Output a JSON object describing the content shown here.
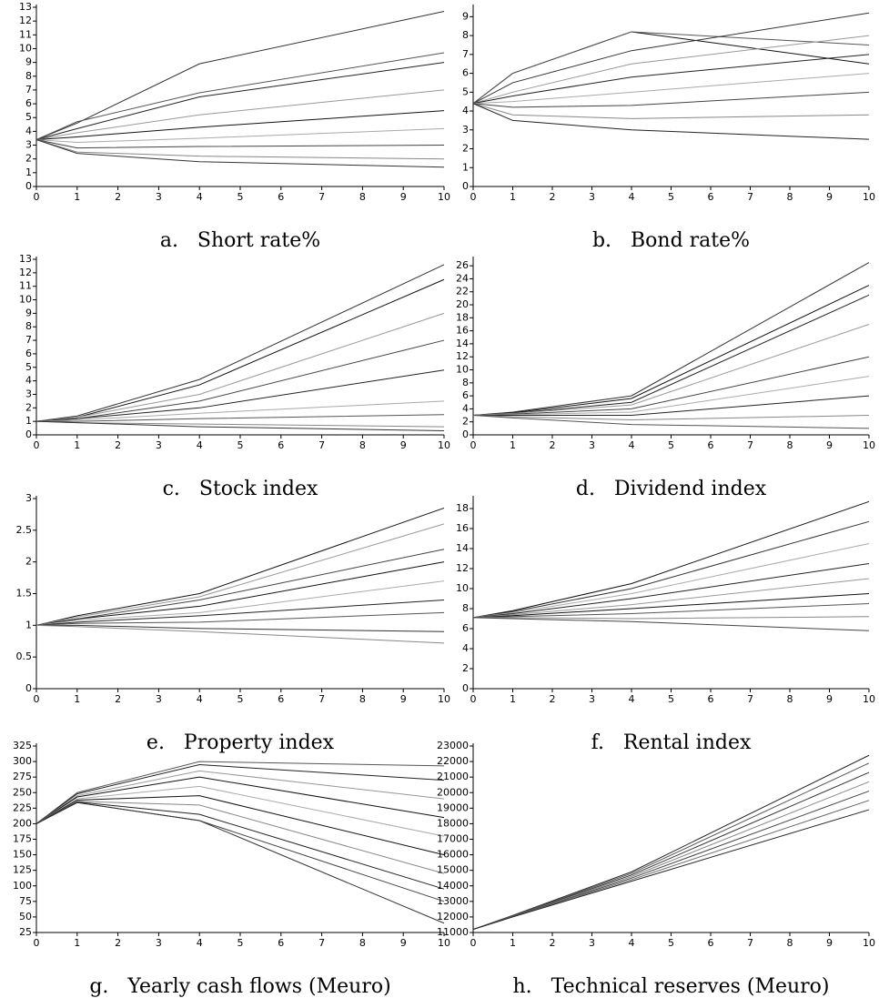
{
  "chart_data": [
    {
      "type": "line",
      "title": "a.   Short rate%",
      "x": [
        0,
        1,
        4,
        10
      ],
      "xlim": [
        0,
        10
      ],
      "xticks": [
        0,
        1,
        2,
        3,
        4,
        5,
        6,
        7,
        8,
        9,
        10
      ],
      "ylim": [
        0,
        13
      ],
      "yticks": [
        0,
        1,
        2,
        3,
        4,
        5,
        6,
        7,
        8,
        9,
        10,
        11,
        12,
        13
      ],
      "series": [
        {
          "color": "#333333",
          "values": [
            3.4,
            4.6,
            8.9,
            12.7
          ]
        },
        {
          "color": "#555555",
          "values": [
            3.4,
            4.7,
            6.8,
            9.7
          ]
        },
        {
          "color": "#222222",
          "values": [
            3.4,
            4.2,
            6.5,
            9.0
          ]
        },
        {
          "color": "#999999",
          "values": [
            3.4,
            3.9,
            5.2,
            7.0
          ]
        },
        {
          "color": "#111111",
          "values": [
            3.4,
            3.6,
            4.3,
            5.5
          ]
        },
        {
          "color": "#aaaaaa",
          "values": [
            3.4,
            3.2,
            3.5,
            4.2
          ]
        },
        {
          "color": "#444444",
          "values": [
            3.4,
            2.8,
            2.9,
            3.0
          ]
        },
        {
          "color": "#888888",
          "values": [
            3.4,
            2.5,
            2.2,
            2.0
          ]
        },
        {
          "color": "#333333",
          "values": [
            3.4,
            2.4,
            1.8,
            1.4
          ]
        }
      ]
    },
    {
      "type": "line",
      "title": "b.   Bond rate%",
      "x": [
        0,
        1,
        4,
        10
      ],
      "xlim": [
        0,
        10
      ],
      "xticks": [
        0,
        1,
        2,
        3,
        4,
        5,
        6,
        7,
        8,
        9,
        10
      ],
      "ylim": [
        0,
        9.5
      ],
      "yticks": [
        0,
        1,
        2,
        3,
        4,
        5,
        6,
        7,
        8,
        9
      ],
      "series": [
        {
          "color": "#111111",
          "values": [
            4.4,
            6.0,
            8.2,
            6.5
          ]
        },
        {
          "color": "#555555",
          "values": [
            4.4,
            6.0,
            8.2,
            7.5
          ]
        },
        {
          "color": "#333333",
          "values": [
            4.4,
            5.5,
            7.2,
            9.2
          ]
        },
        {
          "color": "#999999",
          "values": [
            4.4,
            5.0,
            6.5,
            8.0
          ]
        },
        {
          "color": "#222222",
          "values": [
            4.4,
            4.8,
            5.8,
            7.0
          ]
        },
        {
          "color": "#aaaaaa",
          "values": [
            4.4,
            4.5,
            5.0,
            6.0
          ]
        },
        {
          "color": "#444444",
          "values": [
            4.4,
            4.2,
            4.3,
            5.0
          ]
        },
        {
          "color": "#888888",
          "values": [
            4.4,
            3.8,
            3.6,
            3.8
          ]
        },
        {
          "color": "#222222",
          "values": [
            4.4,
            3.5,
            3.0,
            2.5
          ]
        }
      ]
    },
    {
      "type": "line",
      "title": "c.   Stock index",
      "x": [
        0,
        1,
        4,
        10
      ],
      "xlim": [
        0,
        10
      ],
      "xticks": [
        0,
        1,
        2,
        3,
        4,
        5,
        6,
        7,
        8,
        9,
        10
      ],
      "ylim": [
        0,
        13
      ],
      "yticks": [
        0,
        1,
        2,
        3,
        4,
        5,
        6,
        7,
        8,
        9,
        10,
        11,
        12,
        13
      ],
      "series": [
        {
          "color": "#333333",
          "values": [
            1,
            1.4,
            4.1,
            12.6
          ]
        },
        {
          "color": "#111111",
          "values": [
            1,
            1.3,
            3.7,
            11.5
          ]
        },
        {
          "color": "#999999",
          "values": [
            1,
            1.3,
            3.0,
            9.0
          ]
        },
        {
          "color": "#444444",
          "values": [
            1,
            1.2,
            2.5,
            7.0
          ]
        },
        {
          "color": "#222222",
          "values": [
            1,
            1.2,
            2.0,
            4.8
          ]
        },
        {
          "color": "#aaaaaa",
          "values": [
            1,
            1.1,
            1.6,
            2.5
          ]
        },
        {
          "color": "#555555",
          "values": [
            1,
            1.0,
            1.2,
            1.5
          ]
        },
        {
          "color": "#888888",
          "values": [
            1,
            0.9,
            0.8,
            0.6
          ]
        },
        {
          "color": "#333333",
          "values": [
            1,
            0.9,
            0.6,
            0.3
          ]
        }
      ]
    },
    {
      "type": "line",
      "title": "d.   Dividend index",
      "x": [
        0,
        1,
        4,
        10
      ],
      "xlim": [
        0,
        10
      ],
      "xticks": [
        0,
        1,
        2,
        3,
        4,
        5,
        6,
        7,
        8,
        9,
        10
      ],
      "ylim": [
        0,
        27
      ],
      "yticks": [
        0,
        2,
        4,
        6,
        8,
        10,
        12,
        14,
        16,
        18,
        20,
        22,
        24,
        26
      ],
      "series": [
        {
          "color": "#333333",
          "values": [
            3,
            3.5,
            6.0,
            26.5
          ]
        },
        {
          "color": "#111111",
          "values": [
            3,
            3.4,
            5.6,
            23
          ]
        },
        {
          "color": "#222222",
          "values": [
            3,
            3.3,
            5.0,
            21.5
          ]
        },
        {
          "color": "#999999",
          "values": [
            3,
            3.3,
            4.6,
            17
          ]
        },
        {
          "color": "#444444",
          "values": [
            3,
            3.2,
            4.0,
            12
          ]
        },
        {
          "color": "#aaaaaa",
          "values": [
            3,
            3.1,
            3.5,
            9
          ]
        },
        {
          "color": "#222222",
          "values": [
            3,
            3.0,
            3.0,
            6
          ]
        },
        {
          "color": "#888888",
          "values": [
            3,
            2.8,
            2.3,
            3
          ]
        },
        {
          "color": "#555555",
          "values": [
            3,
            2.6,
            1.6,
            1
          ]
        }
      ]
    },
    {
      "type": "line",
      "title": "e.   Property index",
      "x": [
        0,
        1,
        4,
        10
      ],
      "xlim": [
        0,
        10
      ],
      "xticks": [
        0,
        1,
        2,
        3,
        4,
        5,
        6,
        7,
        8,
        9,
        10
      ],
      "ylim": [
        0,
        3
      ],
      "yticks": [
        0,
        0.5,
        1,
        1.5,
        2,
        2.5,
        3
      ],
      "series": [
        {
          "color": "#111111",
          "values": [
            1,
            1.15,
            1.5,
            2.85
          ]
        },
        {
          "color": "#999999",
          "values": [
            1,
            1.13,
            1.45,
            2.6
          ]
        },
        {
          "color": "#444444",
          "values": [
            1,
            1.1,
            1.4,
            2.2
          ]
        },
        {
          "color": "#111111",
          "values": [
            1,
            1.1,
            1.3,
            2.0
          ]
        },
        {
          "color": "#aaaaaa",
          "values": [
            1,
            1.08,
            1.2,
            1.7
          ]
        },
        {
          "color": "#222222",
          "values": [
            1,
            1.05,
            1.15,
            1.4
          ]
        },
        {
          "color": "#555555",
          "values": [
            1,
            1.03,
            1.05,
            1.2
          ]
        },
        {
          "color": "#333333",
          "values": [
            1,
            1.0,
            0.95,
            0.9
          ]
        },
        {
          "color": "#888888",
          "values": [
            1,
            0.98,
            0.9,
            0.72
          ]
        }
      ]
    },
    {
      "type": "line",
      "title": "f.   Rental index",
      "x": [
        0,
        1,
        4,
        10
      ],
      "xlim": [
        0,
        10
      ],
      "xticks": [
        0,
        1,
        2,
        3,
        4,
        5,
        6,
        7,
        8,
        9,
        10
      ],
      "ylim": [
        0,
        19
      ],
      "yticks": [
        0,
        2,
        4,
        6,
        8,
        10,
        12,
        14,
        16,
        18
      ],
      "series": [
        {
          "color": "#111111",
          "values": [
            7.1,
            7.8,
            10.5,
            18.7
          ]
        },
        {
          "color": "#333333",
          "values": [
            7.1,
            7.7,
            10.0,
            16.7
          ]
        },
        {
          "color": "#aaaaaa",
          "values": [
            7.1,
            7.6,
            9.5,
            14.5
          ]
        },
        {
          "color": "#222222",
          "values": [
            7.1,
            7.5,
            9.0,
            12.5
          ]
        },
        {
          "color": "#999999",
          "values": [
            7.1,
            7.4,
            8.4,
            11
          ]
        },
        {
          "color": "#111111",
          "values": [
            7.1,
            7.3,
            8.0,
            9.5
          ]
        },
        {
          "color": "#555555",
          "values": [
            7.1,
            7.2,
            7.5,
            8.5
          ]
        },
        {
          "color": "#888888",
          "values": [
            7.1,
            7.1,
            7.0,
            7.2
          ]
        },
        {
          "color": "#444444",
          "values": [
            7.1,
            7.0,
            6.7,
            5.8
          ]
        }
      ]
    },
    {
      "type": "line",
      "title": "g.   Yearly cash flows (Meuro)",
      "x": [
        0,
        1,
        4,
        10
      ],
      "xlim": [
        0,
        10
      ],
      "xticks": [
        0,
        1,
        2,
        3,
        4,
        5,
        6,
        7,
        8,
        9,
        10
      ],
      "ylim": [
        25,
        325
      ],
      "yticks": [
        25,
        50,
        75,
        100,
        125,
        150,
        175,
        200,
        225,
        250,
        275,
        300,
        325
      ],
      "series": [
        {
          "color": "#555555",
          "values": [
            200,
            250,
            300,
            293
          ]
        },
        {
          "color": "#222222",
          "values": [
            200,
            248,
            295,
            270
          ]
        },
        {
          "color": "#999999",
          "values": [
            200,
            245,
            285,
            240
          ]
        },
        {
          "color": "#111111",
          "values": [
            200,
            243,
            275,
            210
          ]
        },
        {
          "color": "#aaaaaa",
          "values": [
            200,
            240,
            260,
            180
          ]
        },
        {
          "color": "#111111",
          "values": [
            200,
            238,
            245,
            150
          ]
        },
        {
          "color": "#888888",
          "values": [
            200,
            236,
            230,
            120
          ]
        },
        {
          "color": "#222222",
          "values": [
            200,
            235,
            215,
            95
          ]
        },
        {
          "color": "#444444",
          "values": [
            200,
            234,
            205,
            75
          ]
        },
        {
          "color": "#333333",
          "values": [
            200,
            234,
            205,
            40
          ]
        }
      ]
    },
    {
      "type": "line",
      "title": "h.   Technical reserves (Meuro)",
      "x": [
        0,
        1,
        4,
        10
      ],
      "xlim": [
        0,
        10
      ],
      "xticks": [
        0,
        1,
        2,
        3,
        4,
        5,
        6,
        7,
        8,
        9,
        10
      ],
      "ylim": [
        11000,
        23000
      ],
      "yticks": [
        11000,
        12000,
        13000,
        14000,
        15000,
        16000,
        17000,
        18000,
        19000,
        20000,
        21000,
        22000,
        23000
      ],
      "series": [
        {
          "color": "#222222",
          "values": [
            11200,
            12100,
            14900,
            22400
          ]
        },
        {
          "color": "#555555",
          "values": [
            11200,
            12080,
            14800,
            21900
          ]
        },
        {
          "color": "#333333",
          "values": [
            11200,
            12060,
            14700,
            21300
          ]
        },
        {
          "color": "#888888",
          "values": [
            11200,
            12050,
            14600,
            20700
          ]
        },
        {
          "color": "#444444",
          "values": [
            11200,
            12040,
            14500,
            20100
          ]
        },
        {
          "color": "#666666",
          "values": [
            11200,
            12020,
            14400,
            19500
          ]
        },
        {
          "color": "#222222",
          "values": [
            11200,
            12000,
            14300,
            18900
          ]
        }
      ]
    }
  ]
}
